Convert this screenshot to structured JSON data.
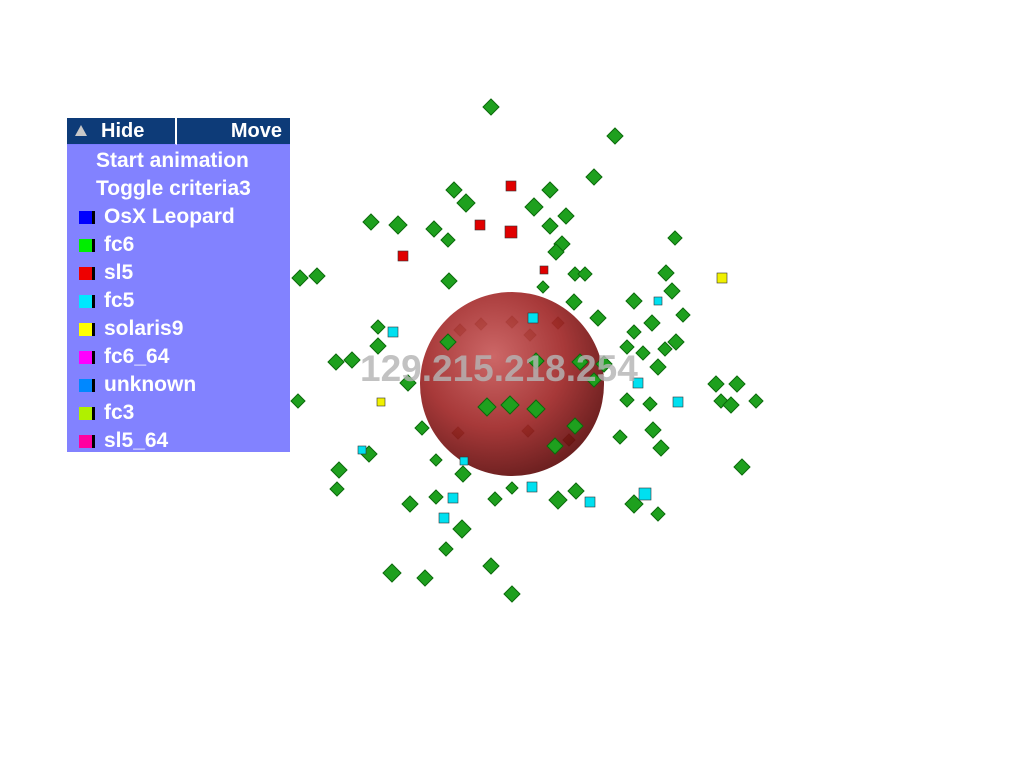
{
  "scene": {
    "central_node": {
      "label": "129.215.218.254",
      "color": "#b22222"
    },
    "node_colors": {
      "green": "#1ea01e",
      "red": "#e00000",
      "cyan": "#00e0f0",
      "yellow": "#f0f000"
    }
  },
  "panel": {
    "hide_label": "Hide",
    "move_label": "Move",
    "actions": [
      {
        "label": "Start animation"
      },
      {
        "label": "Toggle criteria3"
      }
    ],
    "legend": [
      {
        "label": "OsX Leopard",
        "color": "#0000ff"
      },
      {
        "label": "fc6",
        "color": "#00ee00"
      },
      {
        "label": "sl5",
        "color": "#ee0000"
      },
      {
        "label": "fc5",
        "color": "#00e8ff"
      },
      {
        "label": "solaris9",
        "color": "#ffff00"
      },
      {
        "label": "fc6_64",
        "color": "#ff00ff"
      },
      {
        "label": "unknown",
        "color": "#0088ff"
      },
      {
        "label": "fc3",
        "color": "#b0f000"
      },
      {
        "label": "sl5_64",
        "color": "#ff00a0"
      }
    ]
  }
}
